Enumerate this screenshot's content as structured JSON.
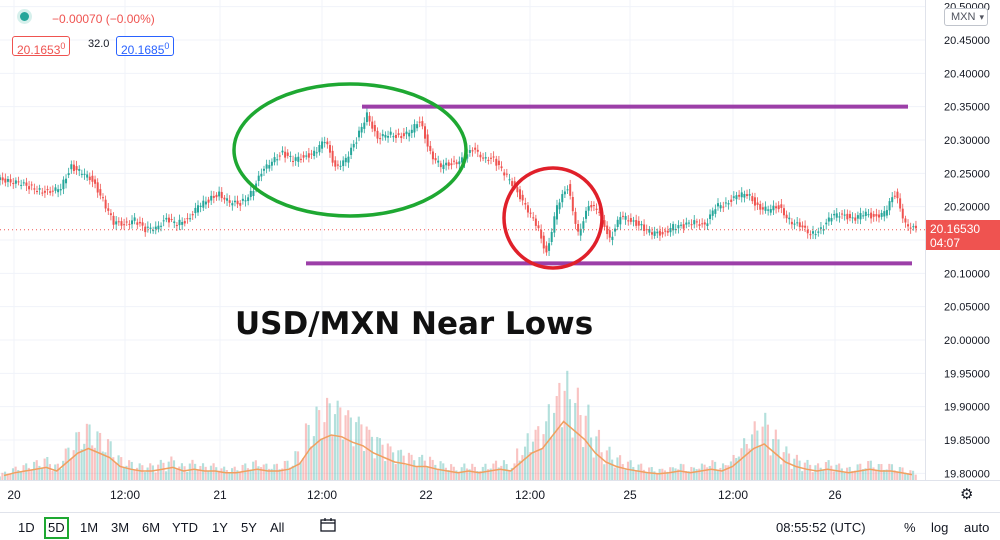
{
  "header": {
    "change": "−0.00070 (−0.00%)",
    "bid": "20.1653",
    "bid_sup": "0",
    "spread": "32.0",
    "ask": "20.1685",
    "ask_sup": "0"
  },
  "currency": "MXN",
  "current_price": {
    "value": "20.16530",
    "countdown": "04:07",
    "color": "#ef5350"
  },
  "annotation": {
    "text": "USD/MXN Near Lows"
  },
  "colors": {
    "up": "#26a69a",
    "down": "#ef5350",
    "lines": "#9c3fa8",
    "green_ellipse": "#1ea832",
    "red_circle": "#e0202a",
    "ma": "#f0a060"
  },
  "chart_data": {
    "type": "line",
    "title": "",
    "x_labels": [
      "20",
      "12:00",
      "21",
      "12:00",
      "22",
      "12:00",
      "25",
      "12:00",
      "26"
    ],
    "y_ticks": [
      "20.50000",
      "20.45000",
      "20.40000",
      "20.35000",
      "20.30000",
      "20.25000",
      "20.20000",
      "20.15000",
      "20.10000",
      "20.05000",
      "20.00000",
      "19.95000",
      "19.90000",
      "19.85000",
      "19.80000"
    ],
    "ylim": [
      19.79,
      20.51
    ],
    "price_series": [
      20.24,
      20.235,
      20.23,
      20.225,
      20.22,
      20.23,
      20.26,
      20.25,
      20.24,
      20.21,
      20.175,
      20.175,
      20.18,
      20.165,
      20.17,
      20.18,
      20.175,
      20.18,
      20.2,
      20.21,
      20.22,
      20.205,
      20.205,
      20.22,
      20.25,
      20.27,
      20.28,
      20.27,
      20.275,
      20.28,
      20.3,
      20.26,
      20.27,
      20.3,
      20.34,
      20.3,
      20.31,
      20.305,
      20.31,
      20.33,
      20.28,
      20.26,
      20.265,
      20.27,
      20.285,
      20.275,
      20.27,
      20.25,
      20.23,
      20.2,
      20.175,
      20.13,
      20.2,
      20.23,
      20.16,
      20.2,
      20.195,
      20.15,
      20.185,
      20.18,
      20.17,
      20.16,
      20.16,
      20.17,
      20.17,
      20.18,
      20.17,
      20.2,
      20.205,
      20.215,
      20.22,
      20.2,
      20.195,
      20.2,
      20.18,
      20.17,
      20.16,
      20.165,
      20.185,
      20.19,
      20.18,
      20.19,
      20.185,
      20.19,
      20.22,
      20.175,
      20.1653
    ],
    "resistance": 20.35,
    "support": 20.115,
    "volume_series": [
      0.05,
      0.08,
      0.1,
      0.12,
      0.14,
      0.1,
      0.2,
      0.3,
      0.35,
      0.3,
      0.25,
      0.15,
      0.12,
      0.1,
      0.1,
      0.12,
      0.14,
      0.1,
      0.12,
      0.1,
      0.1,
      0.08,
      0.08,
      0.1,
      0.12,
      0.1,
      0.1,
      0.12,
      0.18,
      0.35,
      0.45,
      0.5,
      0.48,
      0.42,
      0.38,
      0.3,
      0.25,
      0.2,
      0.18,
      0.15,
      0.15,
      0.12,
      0.1,
      0.08,
      0.1,
      0.08,
      0.1,
      0.12,
      0.1,
      0.2,
      0.3,
      0.35,
      0.5,
      0.65,
      0.55,
      0.45,
      0.3,
      0.2,
      0.15,
      0.12,
      0.1,
      0.08,
      0.07,
      0.08,
      0.1,
      0.08,
      0.1,
      0.12,
      0.1,
      0.15,
      0.25,
      0.35,
      0.4,
      0.3,
      0.2,
      0.15,
      0.12,
      0.1,
      0.12,
      0.1,
      0.08,
      0.1,
      0.12,
      0.1,
      0.1,
      0.08,
      0.06
    ]
  },
  "range_buttons": [
    "1D",
    "5D",
    "1M",
    "3M",
    "6M",
    "YTD",
    "1Y",
    "5Y",
    "All"
  ],
  "active_range": "5D",
  "time_display": "08:55:52 (UTC)",
  "right_tools": {
    "percent": "%",
    "log": "log",
    "auto": "auto"
  }
}
